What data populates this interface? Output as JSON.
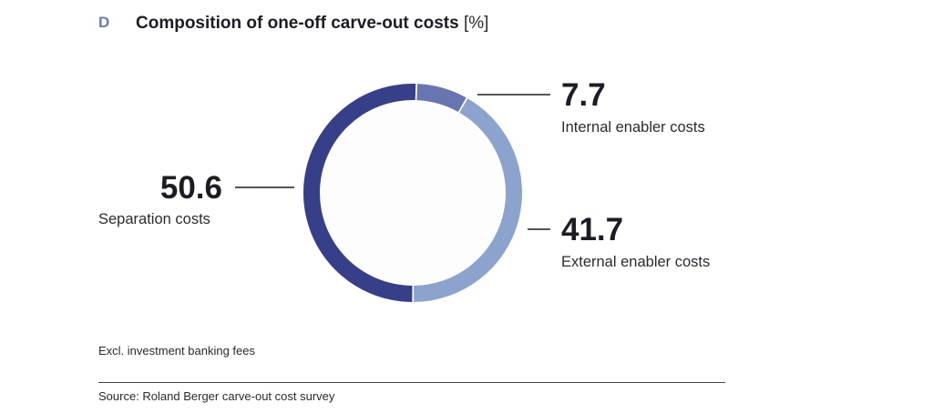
{
  "figure": {
    "panel_letter": "D",
    "title": "Composition of one-off carve-out costs",
    "unit": "[%]"
  },
  "chart_data": {
    "type": "pie",
    "variant": "donut",
    "title": "Composition of one-off carve-out costs",
    "unit": "%",
    "slices": [
      {
        "label": "Internal enabler costs",
        "value": 7.7,
        "value_text": "7.7",
        "color": "#6775b0"
      },
      {
        "label": "External enabler costs",
        "value": 41.7,
        "value_text": "41.7",
        "color": "#8ca3cd"
      },
      {
        "label": "Separation costs",
        "value": 50.6,
        "value_text": "50.6",
        "color": "#363f87"
      }
    ]
  },
  "footnote": "Excl. investment banking fees",
  "source": "Source: Roland Berger carve-out cost survey"
}
